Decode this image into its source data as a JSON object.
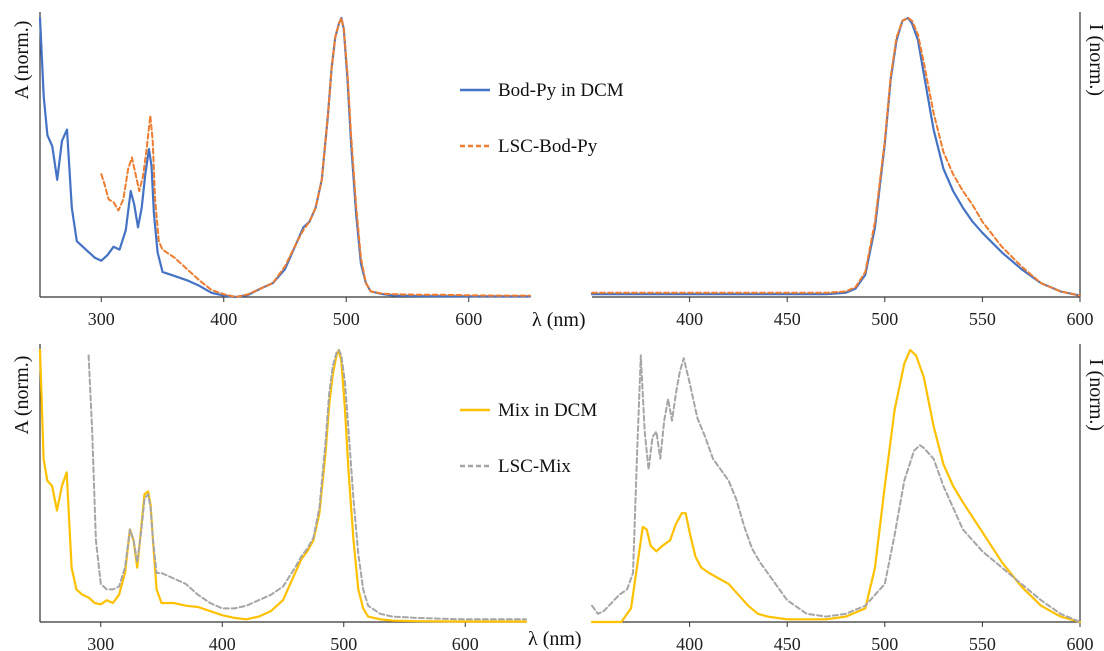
{
  "chart_data": [
    {
      "type": "line",
      "ylabel": "A (norm.)",
      "xlabel": "λ (nm)",
      "xlim": [
        250,
        650
      ],
      "ylim": [
        0,
        1
      ],
      "xticks": [
        300,
        400,
        500,
        600
      ],
      "legend_position": "center-right",
      "series": [
        {
          "name": "Bod-Py in DCM",
          "color": "#4472C4",
          "dash": "solid",
          "x": [
            250,
            253,
            256,
            260,
            264,
            268,
            272,
            276,
            280,
            285,
            290,
            295,
            300,
            305,
            310,
            315,
            320,
            324,
            327,
            330,
            333,
            336,
            339,
            341,
            343,
            346,
            350,
            360,
            370,
            380,
            390,
            400,
            410,
            420,
            430,
            440,
            450,
            460,
            465,
            470,
            475,
            480,
            485,
            488,
            491,
            494,
            496,
            498,
            501,
            504,
            508,
            512,
            516,
            520,
            530,
            540,
            560,
            600,
            650
          ],
          "y": [
            1.0,
            0.72,
            0.58,
            0.54,
            0.42,
            0.56,
            0.6,
            0.32,
            0.2,
            0.18,
            0.16,
            0.14,
            0.13,
            0.15,
            0.18,
            0.17,
            0.24,
            0.38,
            0.33,
            0.25,
            0.32,
            0.44,
            0.53,
            0.47,
            0.3,
            0.16,
            0.09,
            0.075,
            0.06,
            0.04,
            0.015,
            0.005,
            0.0,
            0.008,
            0.03,
            0.05,
            0.1,
            0.2,
            0.25,
            0.27,
            0.32,
            0.42,
            0.65,
            0.82,
            0.93,
            0.98,
            1.0,
            0.96,
            0.78,
            0.55,
            0.3,
            0.12,
            0.05,
            0.02,
            0.01,
            0.005,
            0.003,
            0.002,
            0.002
          ]
        },
        {
          "name": "LSC-Bod-Py",
          "color": "#ED7D31",
          "dash": "dashed",
          "x": [
            300,
            303,
            306,
            310,
            314,
            318,
            322,
            325,
            328,
            331,
            334,
            337,
            340,
            342,
            344,
            347,
            350,
            360,
            370,
            380,
            390,
            400,
            410,
            420,
            430,
            440,
            450,
            460,
            465,
            470,
            475,
            480,
            485,
            488,
            491,
            494,
            496,
            498,
            501,
            504,
            508,
            512,
            516,
            520,
            530,
            540,
            560,
            580,
            600,
            620,
            640,
            650
          ],
          "y": [
            0.44,
            0.4,
            0.35,
            0.34,
            0.31,
            0.35,
            0.46,
            0.5,
            0.44,
            0.38,
            0.43,
            0.53,
            0.65,
            0.56,
            0.35,
            0.2,
            0.17,
            0.14,
            0.1,
            0.06,
            0.025,
            0.01,
            0.0,
            0.01,
            0.03,
            0.05,
            0.11,
            0.2,
            0.24,
            0.27,
            0.32,
            0.42,
            0.65,
            0.82,
            0.93,
            0.98,
            1.0,
            0.96,
            0.8,
            0.58,
            0.33,
            0.14,
            0.05,
            0.02,
            0.012,
            0.01,
            0.008,
            0.008,
            0.006,
            0.005,
            0.005,
            0.005
          ]
        }
      ]
    },
    {
      "type": "line",
      "ylabel": "I (norm.)",
      "xlabel": "",
      "xlim": [
        350,
        600
      ],
      "ylim": [
        0,
        1
      ],
      "xticks": [
        400,
        450,
        500,
        550,
        600
      ],
      "series": [
        {
          "name": "Bod-Py in DCM",
          "color": "#4472C4",
          "dash": "solid",
          "x": [
            350,
            400,
            450,
            470,
            480,
            485,
            490,
            495,
            500,
            503,
            506,
            509,
            512,
            514,
            517,
            520,
            525,
            530,
            535,
            540,
            545,
            550,
            560,
            570,
            580,
            590,
            600
          ],
          "y": [
            0.01,
            0.01,
            0.01,
            0.01,
            0.015,
            0.03,
            0.08,
            0.25,
            0.55,
            0.78,
            0.92,
            0.99,
            1.0,
            0.98,
            0.92,
            0.8,
            0.6,
            0.46,
            0.38,
            0.32,
            0.27,
            0.23,
            0.16,
            0.1,
            0.05,
            0.02,
            0.005
          ]
        },
        {
          "name": "LSC-Bod-Py",
          "color": "#ED7D31",
          "dash": "dashed",
          "x": [
            350,
            400,
            450,
            470,
            480,
            485,
            490,
            495,
            500,
            503,
            506,
            509,
            512,
            514,
            517,
            520,
            525,
            530,
            535,
            540,
            545,
            550,
            560,
            570,
            580,
            590,
            600
          ],
          "y": [
            0.015,
            0.015,
            0.015,
            0.015,
            0.02,
            0.035,
            0.09,
            0.27,
            0.56,
            0.79,
            0.93,
            0.99,
            1.0,
            0.99,
            0.94,
            0.84,
            0.66,
            0.52,
            0.44,
            0.38,
            0.33,
            0.27,
            0.18,
            0.11,
            0.05,
            0.02,
            0.005
          ]
        }
      ]
    },
    {
      "type": "line",
      "ylabel": "A (norm.)",
      "xlabel": "λ (nm)",
      "xlim": [
        250,
        650
      ],
      "ylim": [
        0,
        1
      ],
      "xticks": [
        300,
        400,
        500,
        600
      ],
      "legend_position": "center-right",
      "series": [
        {
          "name": "Mix in DCM",
          "color": "#FFC000",
          "dash": "solid",
          "x": [
            250,
            253,
            256,
            260,
            264,
            268,
            272,
            276,
            280,
            285,
            290,
            295,
            300,
            305,
            310,
            315,
            320,
            324,
            327,
            330,
            333,
            336,
            339,
            341,
            343,
            346,
            350,
            360,
            370,
            380,
            390,
            400,
            410,
            420,
            430,
            440,
            450,
            460,
            465,
            470,
            475,
            480,
            485,
            488,
            491,
            494,
            496,
            498,
            501,
            504,
            508,
            512,
            516,
            520,
            530,
            540,
            560,
            600,
            650
          ],
          "y": [
            1.0,
            0.6,
            0.52,
            0.5,
            0.41,
            0.5,
            0.55,
            0.2,
            0.12,
            0.1,
            0.09,
            0.07,
            0.065,
            0.08,
            0.07,
            0.1,
            0.18,
            0.34,
            0.3,
            0.2,
            0.33,
            0.47,
            0.48,
            0.43,
            0.3,
            0.12,
            0.07,
            0.07,
            0.06,
            0.055,
            0.04,
            0.025,
            0.015,
            0.01,
            0.02,
            0.04,
            0.08,
            0.18,
            0.23,
            0.26,
            0.3,
            0.4,
            0.62,
            0.8,
            0.91,
            0.98,
            1.0,
            0.96,
            0.78,
            0.55,
            0.3,
            0.12,
            0.05,
            0.02,
            0.01,
            0.005,
            0.003,
            0.002,
            0.002
          ]
        },
        {
          "name": "LSC-Mix",
          "color": "#A5A5A5",
          "dash": "dashed",
          "x": [
            290,
            293,
            296,
            300,
            305,
            310,
            315,
            320,
            324,
            327,
            330,
            333,
            336,
            339,
            341,
            343,
            346,
            350,
            360,
            370,
            380,
            390,
            400,
            410,
            420,
            430,
            440,
            450,
            460,
            465,
            470,
            475,
            480,
            485,
            488,
            491,
            494,
            496,
            498,
            501,
            504,
            508,
            512,
            516,
            520,
            530,
            540,
            560,
            580,
            600,
            620,
            640,
            650
          ],
          "y": [
            0.98,
            0.7,
            0.3,
            0.14,
            0.12,
            0.12,
            0.13,
            0.2,
            0.34,
            0.3,
            0.22,
            0.32,
            0.45,
            0.47,
            0.42,
            0.3,
            0.18,
            0.18,
            0.16,
            0.14,
            0.1,
            0.07,
            0.05,
            0.05,
            0.06,
            0.08,
            0.1,
            0.13,
            0.2,
            0.24,
            0.27,
            0.31,
            0.42,
            0.66,
            0.84,
            0.94,
            0.99,
            1.0,
            0.98,
            0.88,
            0.7,
            0.45,
            0.25,
            0.12,
            0.06,
            0.03,
            0.02,
            0.015,
            0.012,
            0.01,
            0.01,
            0.01,
            0.01
          ]
        }
      ]
    },
    {
      "type": "line",
      "ylabel": "I (norm.)",
      "xlabel": "",
      "xlim": [
        350,
        600
      ],
      "ylim": [
        0,
        1
      ],
      "xticks": [
        400,
        450,
        500,
        550,
        600
      ],
      "series": [
        {
          "name": "Mix in DCM",
          "color": "#FFC000",
          "dash": "solid",
          "x": [
            350,
            365,
            370,
            373,
            376,
            378,
            380,
            383,
            386,
            390,
            393,
            396,
            398,
            400,
            403,
            406,
            410,
            415,
            420,
            425,
            430,
            435,
            440,
            450,
            460,
            470,
            480,
            490,
            495,
            500,
            505,
            510,
            513,
            516,
            520,
            525,
            530,
            535,
            540,
            550,
            560,
            570,
            580,
            590,
            600
          ],
          "y": [
            0.0,
            0.0,
            0.05,
            0.2,
            0.35,
            0.34,
            0.28,
            0.26,
            0.28,
            0.3,
            0.36,
            0.4,
            0.4,
            0.33,
            0.24,
            0.2,
            0.18,
            0.16,
            0.14,
            0.1,
            0.06,
            0.03,
            0.02,
            0.01,
            0.01,
            0.01,
            0.02,
            0.05,
            0.2,
            0.5,
            0.78,
            0.95,
            1.0,
            0.98,
            0.9,
            0.72,
            0.58,
            0.5,
            0.44,
            0.33,
            0.22,
            0.13,
            0.06,
            0.02,
            0.0
          ]
        },
        {
          "name": "LSC-Mix",
          "color": "#A5A5A5",
          "dash": "dashed",
          "x": [
            350,
            353,
            356,
            360,
            364,
            368,
            371,
            373,
            375,
            377,
            379,
            381,
            383,
            385,
            387,
            389,
            391,
            393,
            395,
            397,
            400,
            404,
            408,
            412,
            416,
            420,
            424,
            428,
            432,
            436,
            440,
            445,
            450,
            460,
            470,
            480,
            490,
            500,
            505,
            510,
            515,
            518,
            520,
            525,
            530,
            540,
            550,
            560,
            570,
            580,
            590,
            600
          ],
          "y": [
            0.06,
            0.03,
            0.04,
            0.07,
            0.1,
            0.12,
            0.18,
            0.6,
            0.98,
            0.7,
            0.56,
            0.68,
            0.7,
            0.6,
            0.74,
            0.82,
            0.74,
            0.84,
            0.92,
            0.97,
            0.88,
            0.75,
            0.68,
            0.6,
            0.56,
            0.52,
            0.45,
            0.35,
            0.27,
            0.22,
            0.18,
            0.13,
            0.08,
            0.03,
            0.02,
            0.03,
            0.06,
            0.14,
            0.32,
            0.52,
            0.63,
            0.65,
            0.64,
            0.6,
            0.5,
            0.34,
            0.26,
            0.2,
            0.14,
            0.08,
            0.03,
            0.0
          ]
        }
      ]
    }
  ]
}
